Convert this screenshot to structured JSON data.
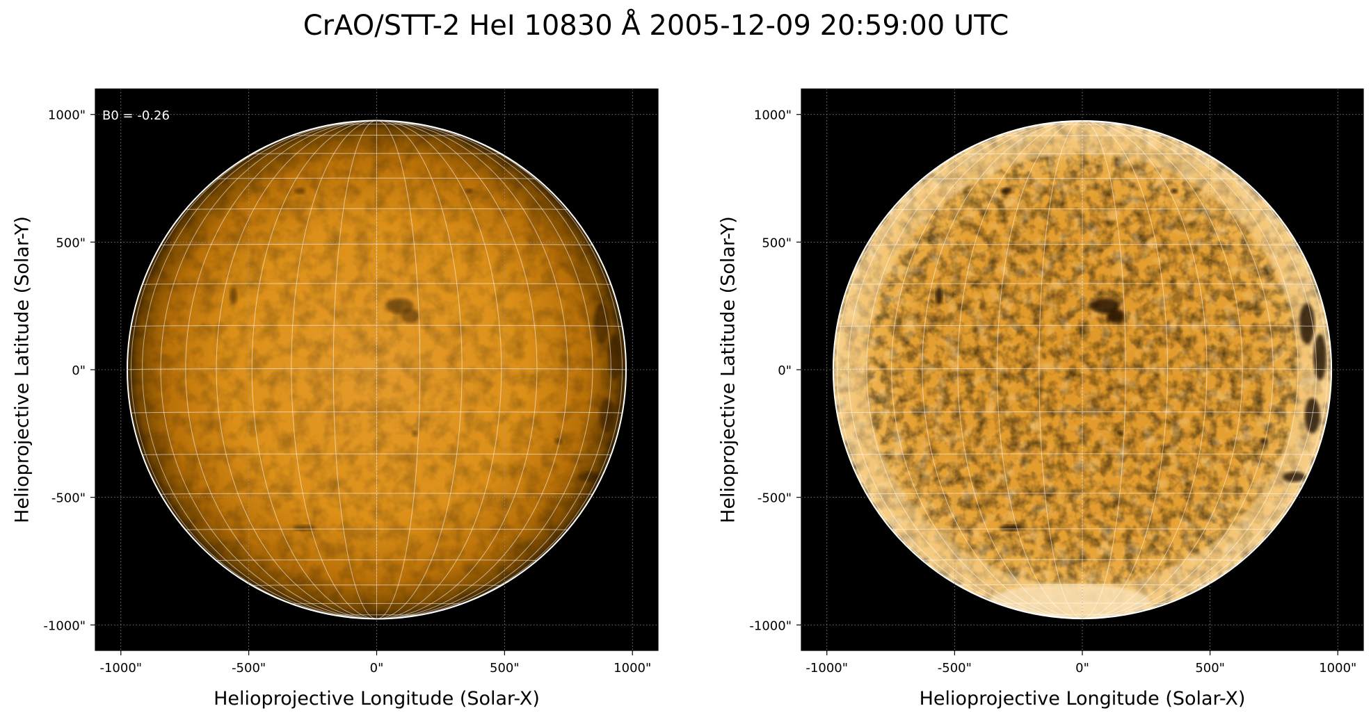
{
  "title": "CrAO/STT-2 HeI 10830 Å 2005-12-09 20:59:00 UTC",
  "colors": {
    "background": "#000000",
    "disk_center": "#eba132",
    "disk_mid": "#d98a14",
    "disk_limb": "#3c2400",
    "enhanced_center": "#f2b44c",
    "grid": "#ffffff",
    "limb_circle": "#ffffff"
  },
  "panels": [
    {
      "name": "original",
      "xlabel": "Helioprojective Longitude (Solar-X)",
      "ylabel": "Helioprojective Latitude (Solar-Y)",
      "xtick_labels": [
        "-1000\"",
        "-500\"",
        "0\"",
        "500\"",
        "1000\""
      ],
      "ytick_labels": [
        "1000\"",
        "500\"",
        "0\"",
        "-500\"",
        "-1000\""
      ],
      "annotation": "B0 = -0.26",
      "image": "He I 10830 Å solar disk, uniform orange with limb darkening and a few dark filaments"
    },
    {
      "name": "enhanced",
      "xlabel": "Helioprojective Longitude (Solar-X)",
      "ylabel": "Helioprojective Latitude (Solar-Y)",
      "xtick_labels": [
        "-1000\"",
        "-500\"",
        "0\"",
        "500\"",
        "1000\""
      ],
      "ytick_labels": [
        "1000\"",
        "500\"",
        "0\"",
        "-500\"",
        "-1000\""
      ],
      "annotation": "",
      "image": "Contrast-enhanced He I 10830 Å solar disk with bright limb patches and dark filaments"
    }
  ],
  "axis_range_arcsec": [
    -1100,
    1100
  ],
  "tick_values_arcsec": [
    -1000,
    -500,
    0,
    500,
    1000
  ],
  "solar_radius_arcsec": 975,
  "b0_deg": -0.26,
  "grid_spacing_deg": 10
}
